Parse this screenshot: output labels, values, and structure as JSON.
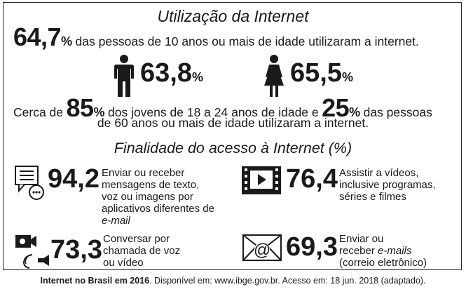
{
  "title": "Utilização da Internet",
  "overall": {
    "value": "64,7",
    "unit": "%",
    "text": "das pessoas de 10 anos ou mais de idade utilizaram a internet."
  },
  "gender": {
    "male": {
      "icon": "male-person-icon",
      "value": "63,8",
      "unit": "%"
    },
    "female": {
      "icon": "female-person-icon",
      "value": "65,5",
      "unit": "%"
    }
  },
  "age": {
    "prefix": "Cerca de",
    "young_value": "85",
    "young_unit": "%",
    "young_text": "dos jovens  de 18 a 24 anos de idade e",
    "old_value": "25",
    "old_unit": "%",
    "old_text_1": "das pessoas",
    "old_text_2": "de 60 anos ou mais de idade utilizaram a internet."
  },
  "purpose": {
    "title": "Finalidade do acesso à Internet (%)",
    "items": [
      {
        "icon": "chat-message-icon",
        "value": "94,2",
        "lines": [
          "Enviar ou receber",
          "mensagens de texto,",
          "voz ou imagens por",
          "aplicativos diferentes de"
        ],
        "italic_line": "e-mail"
      },
      {
        "icon": "video-player-icon",
        "value": "76,4",
        "lines": [
          "Assistir a vídeos,",
          "inclusive programas,",
          "séries e filmes"
        ]
      },
      {
        "icon": "video-call-icon",
        "value": "73,3",
        "lines": [
          "Conversar por",
          "chamada de voz",
          "ou vídeo"
        ]
      },
      {
        "icon": "email-envelope-icon",
        "value": "69,3",
        "line1": "Enviar ou",
        "line2_prefix": "receber ",
        "line2_italic": "e-mails",
        "line3": "(correio eletrônico)"
      }
    ]
  },
  "source": {
    "bold": "Internet no Brasil em 2016",
    "text": ". Disponível em: www.ibge.gov.br. Acesso em: 18 jun. 2018 (adaptado)."
  }
}
